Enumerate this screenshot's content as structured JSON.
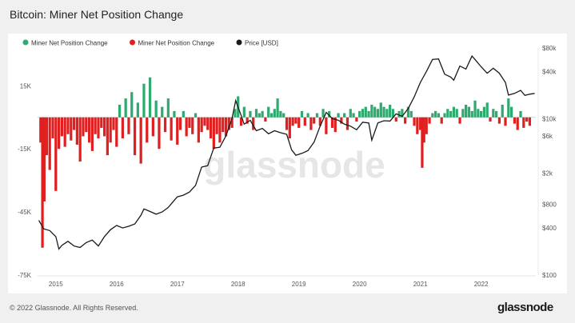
{
  "page_title": "Bitcoin: Miner Net Position Change",
  "footer": {
    "copyright": "© 2022 Glassnode. All Rights Reserved.",
    "brand": "glassnode"
  },
  "watermark": "glassnode",
  "colors": {
    "positive": "#2eaa6e",
    "negative": "#e02020",
    "price": "#1a1a1a"
  },
  "chart_data": {
    "type": "bar",
    "title": "Bitcoin: Miner Net Position Change",
    "legend_position": "top-left",
    "legend": [
      {
        "name": "Miner Net Position Change",
        "color": "#2eaa6e"
      },
      {
        "name": "Miner Net Position Change",
        "color": "#e02020"
      },
      {
        "name": "Price [USD]",
        "color": "#1a1a1a"
      }
    ],
    "y_left": {
      "ticks": [
        15000,
        -15000,
        -45000,
        -75000
      ],
      "tick_labels": [
        "15K",
        "-15K",
        "-45K",
        "-75K"
      ],
      "range": [
        -75000,
        33000
      ]
    },
    "y_right": {
      "scale": "log",
      "ticks": [
        100,
        400,
        800,
        2000,
        6000,
        10000,
        40000,
        80000
      ],
      "tick_labels": [
        "$100",
        "$400",
        "$800",
        "$2k",
        "$6k",
        "$10k",
        "$40k",
        "$80k"
      ],
      "range": [
        100,
        80000
      ]
    },
    "x_axis": {
      "ticks": [
        2015,
        2016,
        2017,
        2018,
        2019,
        2020,
        2021,
        2022
      ],
      "tick_labels": [
        "2015",
        "2016",
        "2017",
        "2018",
        "2019",
        "2020",
        "2021",
        "2022"
      ],
      "range": [
        2014.7,
        2022.9
      ]
    },
    "net_position_change": [
      {
        "x": 2014.75,
        "y": -12000
      },
      {
        "x": 2014.78,
        "y": -62000
      },
      {
        "x": 2014.81,
        "y": -40000
      },
      {
        "x": 2014.85,
        "y": -18000
      },
      {
        "x": 2014.9,
        "y": -25000
      },
      {
        "x": 2014.95,
        "y": -10000
      },
      {
        "x": 2015.0,
        "y": -35000
      },
      {
        "x": 2015.05,
        "y": -15000
      },
      {
        "x": 2015.1,
        "y": -9000
      },
      {
        "x": 2015.15,
        "y": -14000
      },
      {
        "x": 2015.2,
        "y": -8000
      },
      {
        "x": 2015.25,
        "y": -11000
      },
      {
        "x": 2015.3,
        "y": -6000
      },
      {
        "x": 2015.35,
        "y": -13000
      },
      {
        "x": 2015.4,
        "y": -21000
      },
      {
        "x": 2015.45,
        "y": -9000
      },
      {
        "x": 2015.5,
        "y": -7000
      },
      {
        "x": 2015.55,
        "y": -12000
      },
      {
        "x": 2015.6,
        "y": -16000
      },
      {
        "x": 2015.65,
        "y": -8000
      },
      {
        "x": 2015.7,
        "y": -10000
      },
      {
        "x": 2015.75,
        "y": -5000
      },
      {
        "x": 2015.8,
        "y": -9000
      },
      {
        "x": 2015.85,
        "y": -18000
      },
      {
        "x": 2015.9,
        "y": -12000
      },
      {
        "x": 2015.95,
        "y": -6000
      },
      {
        "x": 2016.0,
        "y": -14000
      },
      {
        "x": 2016.05,
        "y": 6000
      },
      {
        "x": 2016.1,
        "y": -10000
      },
      {
        "x": 2016.15,
        "y": 9000
      },
      {
        "x": 2016.2,
        "y": -8000
      },
      {
        "x": 2016.25,
        "y": 12000
      },
      {
        "x": 2016.3,
        "y": -18000
      },
      {
        "x": 2016.35,
        "y": 7000
      },
      {
        "x": 2016.4,
        "y": -22000
      },
      {
        "x": 2016.45,
        "y": 16000
      },
      {
        "x": 2016.5,
        "y": -12000
      },
      {
        "x": 2016.55,
        "y": 19000
      },
      {
        "x": 2016.6,
        "y": -9000
      },
      {
        "x": 2016.65,
        "y": 8000
      },
      {
        "x": 2016.7,
        "y": -15000
      },
      {
        "x": 2016.75,
        "y": 5000
      },
      {
        "x": 2016.8,
        "y": -7000
      },
      {
        "x": 2016.85,
        "y": 9000
      },
      {
        "x": 2016.9,
        "y": -11000
      },
      {
        "x": 2016.95,
        "y": 3000
      },
      {
        "x": 2017.0,
        "y": -13000
      },
      {
        "x": 2017.05,
        "y": -6000
      },
      {
        "x": 2017.1,
        "y": 3000
      },
      {
        "x": 2017.15,
        "y": -9000
      },
      {
        "x": 2017.2,
        "y": -5000
      },
      {
        "x": 2017.25,
        "y": -8000
      },
      {
        "x": 2017.3,
        "y": 2000
      },
      {
        "x": 2017.35,
        "y": -12000
      },
      {
        "x": 2017.4,
        "y": -7000
      },
      {
        "x": 2017.45,
        "y": -4000
      },
      {
        "x": 2017.5,
        "y": -6000
      },
      {
        "x": 2017.55,
        "y": -10000
      },
      {
        "x": 2017.6,
        "y": -15000
      },
      {
        "x": 2017.65,
        "y": -8000
      },
      {
        "x": 2017.7,
        "y": -12000
      },
      {
        "x": 2017.75,
        "y": -7000
      },
      {
        "x": 2017.8,
        "y": -9000
      },
      {
        "x": 2017.85,
        "y": -6000
      },
      {
        "x": 2017.9,
        "y": -5000
      },
      {
        "x": 2017.95,
        "y": 4000
      },
      {
        "x": 2018.0,
        "y": 10000
      },
      {
        "x": 2018.05,
        "y": -4000
      },
      {
        "x": 2018.1,
        "y": 5000
      },
      {
        "x": 2018.15,
        "y": -3000
      },
      {
        "x": 2018.2,
        "y": 3000
      },
      {
        "x": 2018.25,
        "y": -6000
      },
      {
        "x": 2018.3,
        "y": 4000
      },
      {
        "x": 2018.35,
        "y": 2000
      },
      {
        "x": 2018.4,
        "y": 3000
      },
      {
        "x": 2018.45,
        "y": -2000
      },
      {
        "x": 2018.5,
        "y": 5000
      },
      {
        "x": 2018.55,
        "y": 2000
      },
      {
        "x": 2018.6,
        "y": 4000
      },
      {
        "x": 2018.65,
        "y": 9000
      },
      {
        "x": 2018.7,
        "y": 3000
      },
      {
        "x": 2018.75,
        "y": 2000
      },
      {
        "x": 2018.8,
        "y": -6000
      },
      {
        "x": 2018.85,
        "y": -10000
      },
      {
        "x": 2018.9,
        "y": -4000
      },
      {
        "x": 2018.95,
        "y": -3000
      },
      {
        "x": 2019.0,
        "y": -5000
      },
      {
        "x": 2019.05,
        "y": 3000
      },
      {
        "x": 2019.1,
        "y": -4000
      },
      {
        "x": 2019.15,
        "y": 2000
      },
      {
        "x": 2019.2,
        "y": -6000
      },
      {
        "x": 2019.25,
        "y": -3000
      },
      {
        "x": 2019.3,
        "y": 2000
      },
      {
        "x": 2019.35,
        "y": -4000
      },
      {
        "x": 2019.4,
        "y": 4000
      },
      {
        "x": 2019.45,
        "y": -8000
      },
      {
        "x": 2019.5,
        "y": 3000
      },
      {
        "x": 2019.55,
        "y": -5000
      },
      {
        "x": 2019.6,
        "y": -7000
      },
      {
        "x": 2019.65,
        "y": 2000
      },
      {
        "x": 2019.7,
        "y": -3000
      },
      {
        "x": 2019.75,
        "y": 2000
      },
      {
        "x": 2019.8,
        "y": -6000
      },
      {
        "x": 2019.85,
        "y": 4000
      },
      {
        "x": 2019.9,
        "y": 2000
      },
      {
        "x": 2019.95,
        "y": -2000
      },
      {
        "x": 2020.0,
        "y": 3000
      },
      {
        "x": 2020.05,
        "y": 4000
      },
      {
        "x": 2020.1,
        "y": 5000
      },
      {
        "x": 2020.15,
        "y": 3000
      },
      {
        "x": 2020.2,
        "y": 6000
      },
      {
        "x": 2020.25,
        "y": 5000
      },
      {
        "x": 2020.3,
        "y": 4000
      },
      {
        "x": 2020.35,
        "y": 7000
      },
      {
        "x": 2020.4,
        "y": 5000
      },
      {
        "x": 2020.45,
        "y": 4000
      },
      {
        "x": 2020.5,
        "y": 6000
      },
      {
        "x": 2020.55,
        "y": 4000
      },
      {
        "x": 2020.6,
        "y": -2000
      },
      {
        "x": 2020.65,
        "y": 3000
      },
      {
        "x": 2020.7,
        "y": 4000
      },
      {
        "x": 2020.75,
        "y": -3000
      },
      {
        "x": 2020.8,
        "y": 5000
      },
      {
        "x": 2020.85,
        "y": 3000
      },
      {
        "x": 2020.9,
        "y": -4000
      },
      {
        "x": 2020.95,
        "y": -8000
      },
      {
        "x": 2021.0,
        "y": -6000
      },
      {
        "x": 2021.03,
        "y": -24000
      },
      {
        "x": 2021.06,
        "y": -12000
      },
      {
        "x": 2021.1,
        "y": -8000
      },
      {
        "x": 2021.15,
        "y": -3000
      },
      {
        "x": 2021.2,
        "y": 2000
      },
      {
        "x": 2021.25,
        "y": 3000
      },
      {
        "x": 2021.3,
        "y": 2000
      },
      {
        "x": 2021.35,
        "y": -3000
      },
      {
        "x": 2021.4,
        "y": 2000
      },
      {
        "x": 2021.45,
        "y": 4000
      },
      {
        "x": 2021.5,
        "y": 3000
      },
      {
        "x": 2021.55,
        "y": 5000
      },
      {
        "x": 2021.6,
        "y": 4000
      },
      {
        "x": 2021.65,
        "y": -3000
      },
      {
        "x": 2021.7,
        "y": 4000
      },
      {
        "x": 2021.75,
        "y": 6000
      },
      {
        "x": 2021.8,
        "y": 5000
      },
      {
        "x": 2021.85,
        "y": 3000
      },
      {
        "x": 2021.9,
        "y": 8000
      },
      {
        "x": 2021.95,
        "y": 4000
      },
      {
        "x": 2022.0,
        "y": 3000
      },
      {
        "x": 2022.05,
        "y": 5000
      },
      {
        "x": 2022.1,
        "y": 7000
      },
      {
        "x": 2022.15,
        "y": -2000
      },
      {
        "x": 2022.2,
        "y": 4000
      },
      {
        "x": 2022.25,
        "y": 3000
      },
      {
        "x": 2022.3,
        "y": -3000
      },
      {
        "x": 2022.35,
        "y": 6000
      },
      {
        "x": 2022.4,
        "y": -4000
      },
      {
        "x": 2022.45,
        "y": 9000
      },
      {
        "x": 2022.5,
        "y": 5000
      },
      {
        "x": 2022.55,
        "y": -3000
      },
      {
        "x": 2022.6,
        "y": -6000
      },
      {
        "x": 2022.65,
        "y": 3000
      },
      {
        "x": 2022.7,
        "y": -5000
      },
      {
        "x": 2022.75,
        "y": -2000
      },
      {
        "x": 2022.8,
        "y": -4000
      }
    ],
    "price_usd": [
      {
        "x": 2014.72,
        "y": 500
      },
      {
        "x": 2014.8,
        "y": 390
      },
      {
        "x": 2014.9,
        "y": 370
      },
      {
        "x": 2015.0,
        "y": 310
      },
      {
        "x": 2015.05,
        "y": 215
      },
      {
        "x": 2015.1,
        "y": 240
      },
      {
        "x": 2015.2,
        "y": 270
      },
      {
        "x": 2015.3,
        "y": 235
      },
      {
        "x": 2015.4,
        "y": 225
      },
      {
        "x": 2015.5,
        "y": 260
      },
      {
        "x": 2015.6,
        "y": 280
      },
      {
        "x": 2015.7,
        "y": 235
      },
      {
        "x": 2015.8,
        "y": 310
      },
      {
        "x": 2015.9,
        "y": 380
      },
      {
        "x": 2016.0,
        "y": 430
      },
      {
        "x": 2016.1,
        "y": 400
      },
      {
        "x": 2016.2,
        "y": 420
      },
      {
        "x": 2016.3,
        "y": 450
      },
      {
        "x": 2016.4,
        "y": 580
      },
      {
        "x": 2016.45,
        "y": 700
      },
      {
        "x": 2016.55,
        "y": 650
      },
      {
        "x": 2016.65,
        "y": 600
      },
      {
        "x": 2016.75,
        "y": 640
      },
      {
        "x": 2016.85,
        "y": 730
      },
      {
        "x": 2016.95,
        "y": 900
      },
      {
        "x": 2017.0,
        "y": 1000
      },
      {
        "x": 2017.1,
        "y": 1050
      },
      {
        "x": 2017.2,
        "y": 1150
      },
      {
        "x": 2017.3,
        "y": 1400
      },
      {
        "x": 2017.4,
        "y": 2400
      },
      {
        "x": 2017.5,
        "y": 2500
      },
      {
        "x": 2017.6,
        "y": 4200
      },
      {
        "x": 2017.7,
        "y": 4300
      },
      {
        "x": 2017.8,
        "y": 6000
      },
      {
        "x": 2017.9,
        "y": 10000
      },
      {
        "x": 2017.96,
        "y": 17000
      },
      {
        "x": 2018.05,
        "y": 11000
      },
      {
        "x": 2018.1,
        "y": 8500
      },
      {
        "x": 2018.2,
        "y": 9500
      },
      {
        "x": 2018.3,
        "y": 7000
      },
      {
        "x": 2018.4,
        "y": 7500
      },
      {
        "x": 2018.5,
        "y": 6400
      },
      {
        "x": 2018.6,
        "y": 7000
      },
      {
        "x": 2018.7,
        "y": 6600
      },
      {
        "x": 2018.8,
        "y": 6300
      },
      {
        "x": 2018.88,
        "y": 4000
      },
      {
        "x": 2018.95,
        "y": 3400
      },
      {
        "x": 2019.05,
        "y": 3600
      },
      {
        "x": 2019.15,
        "y": 3900
      },
      {
        "x": 2019.25,
        "y": 5000
      },
      {
        "x": 2019.35,
        "y": 8000
      },
      {
        "x": 2019.45,
        "y": 12000
      },
      {
        "x": 2019.55,
        "y": 10000
      },
      {
        "x": 2019.65,
        "y": 9500
      },
      {
        "x": 2019.75,
        "y": 8500
      },
      {
        "x": 2019.85,
        "y": 8000
      },
      {
        "x": 2019.95,
        "y": 7200
      },
      {
        "x": 2020.05,
        "y": 9000
      },
      {
        "x": 2020.15,
        "y": 8800
      },
      {
        "x": 2020.2,
        "y": 5300
      },
      {
        "x": 2020.3,
        "y": 8800
      },
      {
        "x": 2020.4,
        "y": 9400
      },
      {
        "x": 2020.5,
        "y": 9300
      },
      {
        "x": 2020.6,
        "y": 11500
      },
      {
        "x": 2020.7,
        "y": 10700
      },
      {
        "x": 2020.8,
        "y": 13500
      },
      {
        "x": 2020.9,
        "y": 19000
      },
      {
        "x": 2021.0,
        "y": 29000
      },
      {
        "x": 2021.1,
        "y": 40000
      },
      {
        "x": 2021.2,
        "y": 57000
      },
      {
        "x": 2021.3,
        "y": 58000
      },
      {
        "x": 2021.4,
        "y": 37000
      },
      {
        "x": 2021.5,
        "y": 34000
      },
      {
        "x": 2021.55,
        "y": 31000
      },
      {
        "x": 2021.65,
        "y": 47000
      },
      {
        "x": 2021.75,
        "y": 43000
      },
      {
        "x": 2021.85,
        "y": 63000
      },
      {
        "x": 2021.9,
        "y": 57000
      },
      {
        "x": 2022.0,
        "y": 46000
      },
      {
        "x": 2022.1,
        "y": 38000
      },
      {
        "x": 2022.2,
        "y": 44000
      },
      {
        "x": 2022.3,
        "y": 38000
      },
      {
        "x": 2022.4,
        "y": 29000
      },
      {
        "x": 2022.45,
        "y": 20000
      },
      {
        "x": 2022.55,
        "y": 21000
      },
      {
        "x": 2022.65,
        "y": 23000
      },
      {
        "x": 2022.72,
        "y": 19800
      },
      {
        "x": 2022.8,
        "y": 20500
      },
      {
        "x": 2022.88,
        "y": 21000
      }
    ]
  }
}
